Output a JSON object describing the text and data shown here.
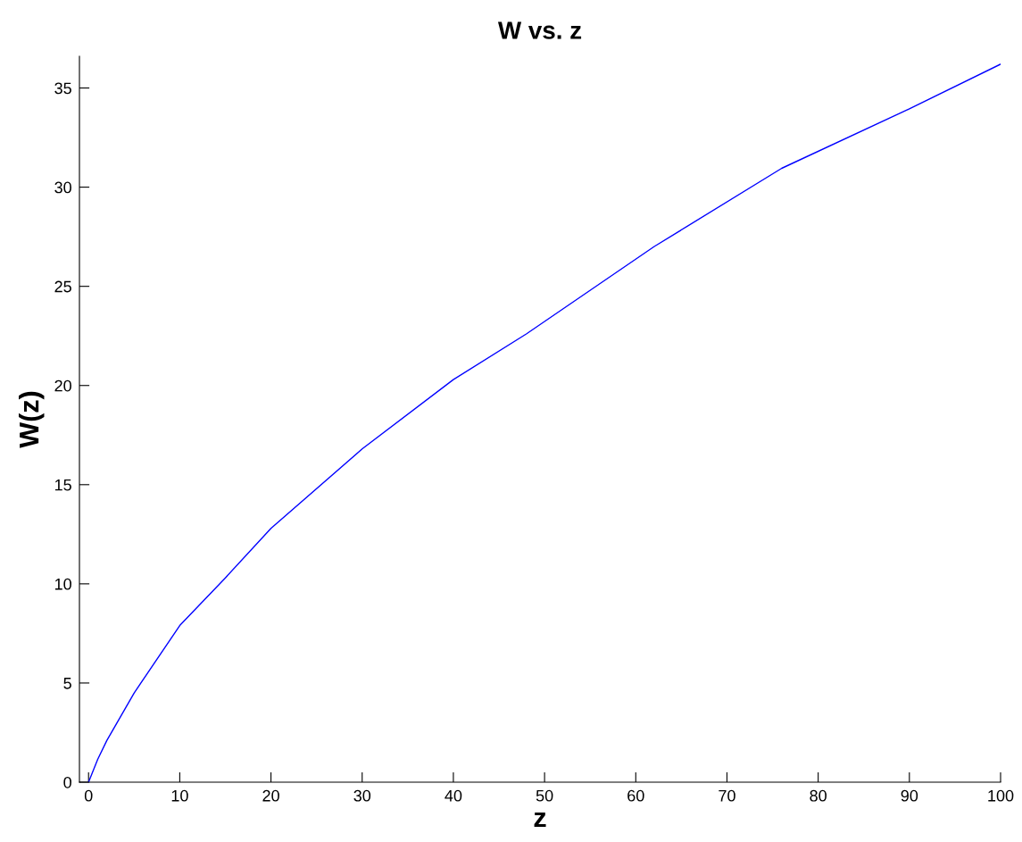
{
  "chart_data": {
    "type": "line",
    "title": "W vs. z",
    "xlabel": "z",
    "ylabel": "W(z)",
    "series": [
      {
        "color": "#0000ff",
        "x": [
          0,
          1,
          2,
          5,
          10,
          15,
          20,
          30,
          40,
          48,
          62,
          76,
          90,
          100
        ],
        "values": [
          0,
          1.15,
          2.1,
          4.5,
          7.9,
          10.3,
          12.8,
          16.8,
          20.3,
          22.6,
          27.0,
          30.95,
          33.95,
          36.2
        ]
      }
    ],
    "xlim": [
      -1,
      100
    ],
    "ylim": [
      0,
      36.6
    ],
    "xticks": [
      0,
      10,
      20,
      30,
      40,
      50,
      60,
      70,
      80,
      90,
      100
    ],
    "yticks": [
      0,
      5,
      10,
      15,
      20,
      25,
      30,
      35
    ],
    "grid": false,
    "legend": false,
    "marker": "none",
    "line_style": "solid"
  }
}
